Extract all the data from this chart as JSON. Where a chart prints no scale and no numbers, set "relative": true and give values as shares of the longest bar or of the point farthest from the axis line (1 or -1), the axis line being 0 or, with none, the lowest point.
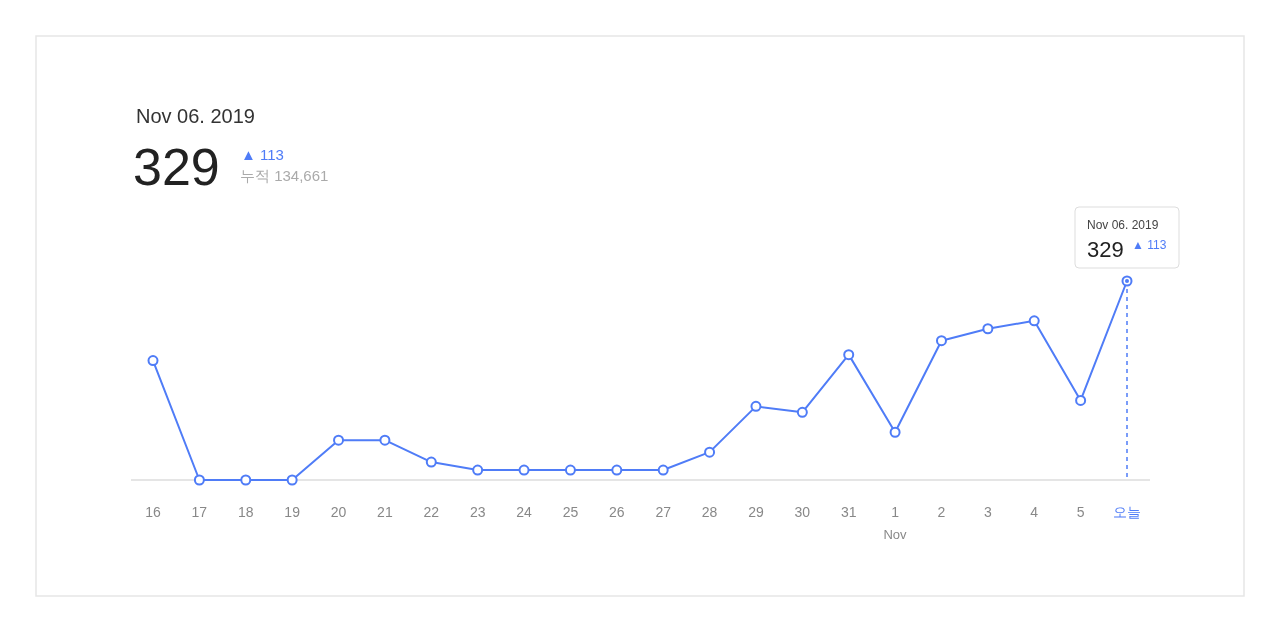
{
  "chart_data": {
    "type": "line",
    "relative": true,
    "title": "Nov 06. 2019",
    "categories": [
      "16",
      "17",
      "18",
      "19",
      "20",
      "21",
      "22",
      "23",
      "24",
      "25",
      "26",
      "27",
      "28",
      "29",
      "30",
      "31",
      "1",
      "2",
      "3",
      "4",
      "5",
      "오늘"
    ],
    "series": [
      {
        "color": "#4f7cf7",
        "values": [
          0.6,
          0.0,
          0.0,
          0.0,
          0.2,
          0.2,
          0.09,
          0.05,
          0.05,
          0.05,
          0.05,
          0.05,
          0.14,
          0.37,
          0.34,
          0.63,
          0.24,
          0.7,
          0.76,
          0.8,
          0.4,
          1
        ]
      }
    ],
    "marker": "circle",
    "line_style": "solid",
    "grid": false,
    "ref_lines": [
      {
        "axis": "x",
        "value": "오늘",
        "color": "#4f7cf7",
        "line_style": "dashed"
      }
    ],
    "annotations": [
      "329",
      "▲ 113",
      "누적 134,661",
      "Nov",
      "Nov 06. 2019",
      "329",
      "▲ 113"
    ]
  }
}
